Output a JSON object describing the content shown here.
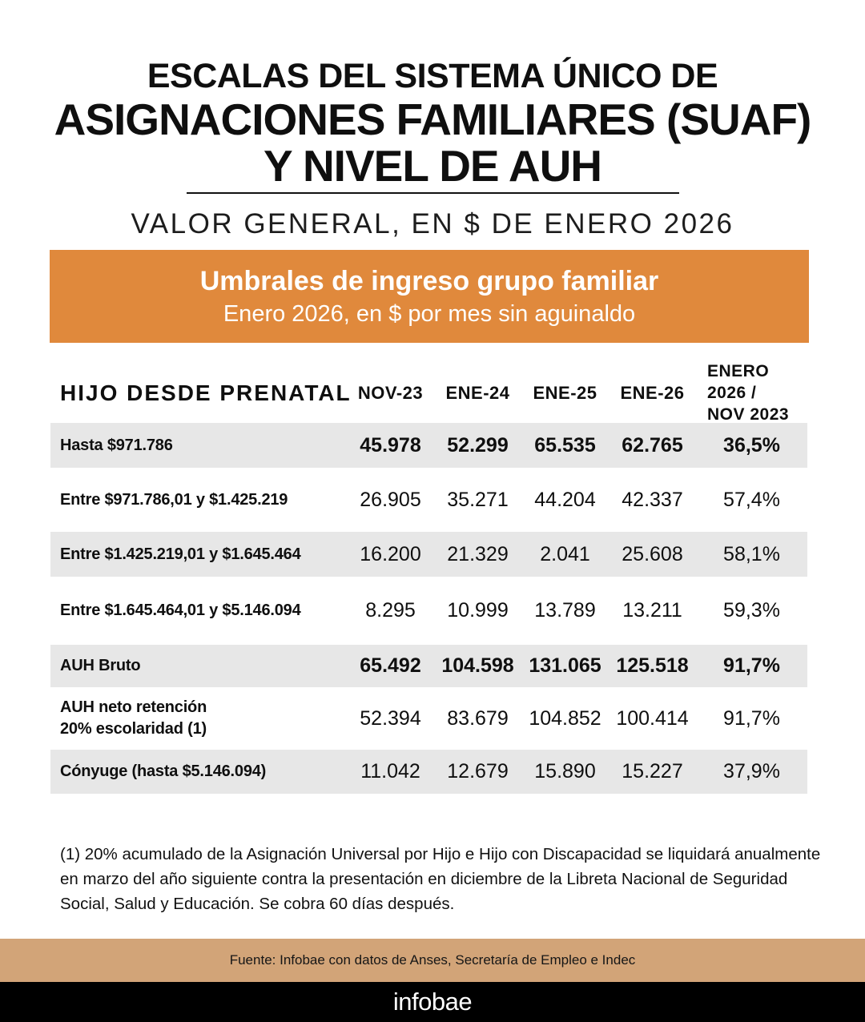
{
  "title": {
    "line1": "ESCALAS DEL SISTEMA ÚNICO DE",
    "line2": "ASIGNACIONES FAMILIARES (SUAF)",
    "line3": "Y NIVEL DE AUH",
    "subtitle": "VALOR GENERAL, EN $ DE ENERO 2026"
  },
  "banner": {
    "title": "Umbrales de ingreso grupo familiar",
    "subtitle": "Enero 2026, en $ por mes sin aguinaldo",
    "bg_color": "#e0893c"
  },
  "chart_data": {
    "type": "table",
    "columns": [
      "HIJO DESDE PRENATAL",
      "NOV-23",
      "ENE-24",
      "ENE-25",
      "ENE-26",
      "ENERO 2026 /\nNOV 2023"
    ],
    "shaded_row_bg": "#e7e7e7",
    "rows": [
      {
        "label": "Hasta $971.786",
        "values": [
          "45.978",
          "52.299",
          "65.535",
          "62.765",
          "36,5%"
        ],
        "bold_values": true,
        "shaded": true
      },
      {
        "label": "Entre  $971.786,01 y $1.425.219",
        "values": [
          "26.905",
          "35.271",
          "44.204",
          "42.337",
          "57,4%"
        ],
        "bold_values": false,
        "shaded": false
      },
      {
        "label": "Entre $1.425.219,01 y $1.645.464",
        "values": [
          "16.200",
          "21.329",
          "2.041",
          "25.608",
          "58,1%"
        ],
        "bold_values": false,
        "shaded": true
      },
      {
        "label": "Entre $1.645.464,01 y $5.146.094",
        "values": [
          "8.295",
          "10.999",
          "13.789",
          "13.211",
          "59,3%"
        ],
        "bold_values": false,
        "shaded": false
      },
      {
        "label": "AUH Bruto",
        "values": [
          "65.492",
          "104.598",
          "131.065",
          "125.518",
          "91,7%"
        ],
        "bold_values": true,
        "shaded": true
      },
      {
        "label": "AUH neto retención\n20% escolaridad (1)",
        "values": [
          "52.394",
          "83.679",
          "104.852",
          "100.414",
          "91,7%"
        ],
        "bold_values": false,
        "shaded": false
      },
      {
        "label": "Cónyuge (hasta $5.146.094)",
        "values": [
          "11.042",
          "12.679",
          "15.890",
          "15.227",
          "37,9%"
        ],
        "bold_values": false,
        "shaded": true
      }
    ]
  },
  "footnote": "(1)  20% acumulado de la Asignación Universal por Hijo e Hijo con Discapacidad se liquidará anualmente en marzo del año siguiente contra la presentación en diciembre  de la Libreta Nacional de Seguridad Social, Salud y Educación. Se  cobra 60 días después.",
  "footer": {
    "source": "Fuente: Infobae con datos de Anses, Secretaría de Empleo e Indec",
    "source_bg": "#d2a478",
    "logo": "infobae",
    "logo_bg": "#000000"
  }
}
